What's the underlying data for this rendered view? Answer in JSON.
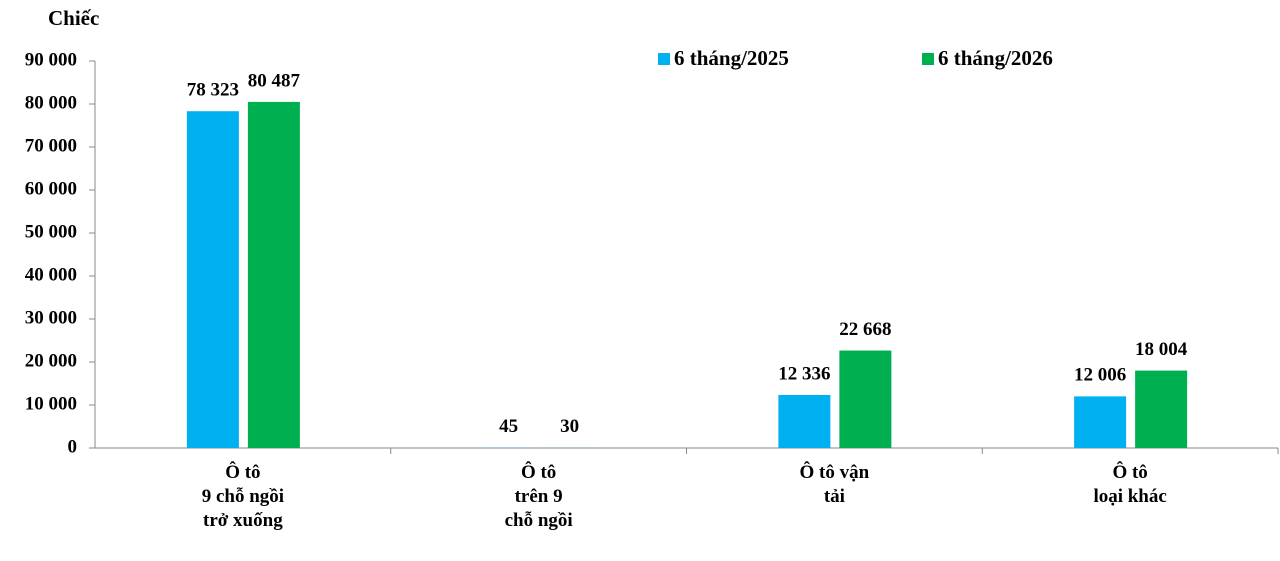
{
  "chart_data": {
    "type": "bar",
    "y_label": "Chiếc",
    "categories": [
      "Ô tô\n9 chỗ ngồi\ntrở xuống",
      "Ô tô\ntrên 9\nchỗ ngồi",
      "Ô tô vận\ntải",
      "Ô tô\nloại khác"
    ],
    "series": [
      {
        "name": "6 tháng/2025",
        "color": "#00b0f0",
        "values": [
          78323,
          45,
          12336,
          12006
        ],
        "value_labels": [
          "78 323",
          "45",
          "12 336",
          "12 006"
        ]
      },
      {
        "name": "6 tháng/2026",
        "color": "#00b050",
        "values": [
          80487,
          30,
          22668,
          18004
        ],
        "value_labels": [
          "80 487",
          "30",
          "22 668",
          "18 004"
        ]
      }
    ],
    "ylim": [
      0,
      90000
    ],
    "yticks": [
      0,
      {
        "value": 10000,
        "label": "10 000"
      },
      {
        "value": 20000,
        "label": "20 000"
      },
      {
        "value": 30000,
        "label": "30 000"
      },
      {
        "value": 40000,
        "label": "40 000"
      },
      {
        "value": 50000,
        "label": "50 000"
      },
      {
        "value": 60000,
        "label": "60 000"
      },
      {
        "value": 70000,
        "label": "70 000"
      },
      {
        "value": 80000,
        "label": "80 000"
      },
      {
        "value": 90000,
        "label": "90 000"
      }
    ],
    "legend": "top-right"
  }
}
